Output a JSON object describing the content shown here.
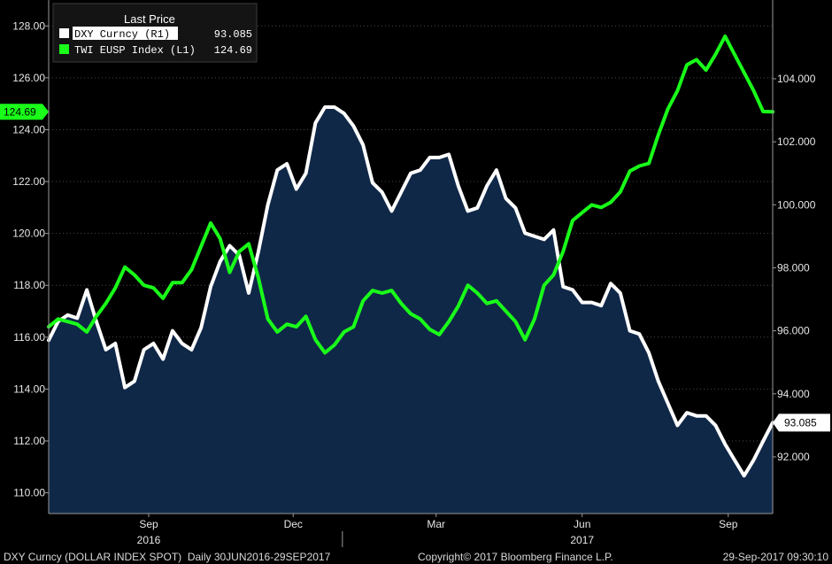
{
  "chart_data": {
    "type": "line",
    "legend": {
      "header": "Last Price",
      "placement": "top-left",
      "entries": [
        {
          "label": "DXY Curncy  (R1)",
          "value": "93.085",
          "color": "#ffffff"
        },
        {
          "label": "TWI EUSP Index  (L1)",
          "value": "124.69",
          "color": "#19ff19"
        }
      ]
    },
    "left_axis": {
      "range": [
        109.2,
        129.0
      ],
      "ticks": [
        "110.00",
        "112.00",
        "114.00",
        "116.00",
        "118.00",
        "120.00",
        "122.00",
        "124.00",
        "126.00",
        "128.00"
      ],
      "last_label": "124.69"
    },
    "right_axis": {
      "range": [
        90.2,
        106.5
      ],
      "ticks": [
        "92.000",
        "94.000",
        "96.000",
        "98.000",
        "100.000",
        "102.000",
        "104.000"
      ],
      "last_label": "93.085"
    },
    "x_axis": {
      "range": [
        "2016-06-30",
        "2017-09-29"
      ],
      "month_ticks": [
        {
          "date": "2016-09-01",
          "label": "Sep"
        },
        {
          "date": "2016-12-01",
          "label": "Dec"
        },
        {
          "date": "2017-03-01",
          "label": "Mar"
        },
        {
          "date": "2017-06-01",
          "label": "Jun"
        },
        {
          "date": "2017-09-01",
          "label": "Sep"
        }
      ],
      "year_labels": [
        {
          "date": "2016-09-01",
          "label": "2016"
        },
        {
          "date": "2017-06-01",
          "label": "2017"
        }
      ],
      "year_divider": "2017-01-01"
    },
    "series": [
      {
        "name": "DXY Curncy",
        "axis": "right",
        "style": "area",
        "color": "#ffffff",
        "fill_color": "#102848",
        "points": [
          [
            "2016-06-30",
            95.7
          ],
          [
            "2016-07-06",
            96.3
          ],
          [
            "2016-07-12",
            96.5
          ],
          [
            "2016-07-18",
            96.4
          ],
          [
            "2016-07-24",
            97.3
          ],
          [
            "2016-07-30",
            96.3
          ],
          [
            "2016-08-05",
            95.4
          ],
          [
            "2016-08-11",
            95.6
          ],
          [
            "2016-08-17",
            94.2
          ],
          [
            "2016-08-23",
            94.4
          ],
          [
            "2016-08-29",
            95.4
          ],
          [
            "2016-09-04",
            95.6
          ],
          [
            "2016-09-10",
            95.1
          ],
          [
            "2016-09-16",
            96.0
          ],
          [
            "2016-09-22",
            95.6
          ],
          [
            "2016-09-28",
            95.4
          ],
          [
            "2016-10-04",
            96.1
          ],
          [
            "2016-10-10",
            97.4
          ],
          [
            "2016-10-16",
            98.2
          ],
          [
            "2016-10-22",
            98.7
          ],
          [
            "2016-10-28",
            98.4
          ],
          [
            "2016-11-03",
            97.2
          ],
          [
            "2016-11-09",
            98.5
          ],
          [
            "2016-11-15",
            100.0
          ],
          [
            "2016-11-21",
            101.1
          ],
          [
            "2016-11-27",
            101.3
          ],
          [
            "2016-12-03",
            100.5
          ],
          [
            "2016-12-09",
            101.0
          ],
          [
            "2016-12-15",
            102.6
          ],
          [
            "2016-12-21",
            103.1
          ],
          [
            "2016-12-27",
            103.1
          ],
          [
            "2017-01-02",
            102.9
          ],
          [
            "2017-01-08",
            102.5
          ],
          [
            "2017-01-14",
            101.9
          ],
          [
            "2017-01-20",
            100.7
          ],
          [
            "2017-01-26",
            100.4
          ],
          [
            "2017-02-01",
            99.8
          ],
          [
            "2017-02-07",
            100.4
          ],
          [
            "2017-02-13",
            101.0
          ],
          [
            "2017-02-19",
            101.1
          ],
          [
            "2017-02-25",
            101.5
          ],
          [
            "2017-03-03",
            101.5
          ],
          [
            "2017-03-09",
            101.6
          ],
          [
            "2017-03-15",
            100.6
          ],
          [
            "2017-03-21",
            99.8
          ],
          [
            "2017-03-27",
            99.9
          ],
          [
            "2017-04-02",
            100.6
          ],
          [
            "2017-04-08",
            101.1
          ],
          [
            "2017-04-14",
            100.2
          ],
          [
            "2017-04-20",
            99.9
          ],
          [
            "2017-04-26",
            99.1
          ],
          [
            "2017-05-02",
            99.0
          ],
          [
            "2017-05-08",
            98.9
          ],
          [
            "2017-05-14",
            99.2
          ],
          [
            "2017-05-20",
            97.4
          ],
          [
            "2017-05-26",
            97.3
          ],
          [
            "2017-06-01",
            96.9
          ],
          [
            "2017-06-07",
            96.9
          ],
          [
            "2017-06-13",
            96.8
          ],
          [
            "2017-06-19",
            97.5
          ],
          [
            "2017-06-25",
            97.2
          ],
          [
            "2017-07-01",
            96.0
          ],
          [
            "2017-07-07",
            95.9
          ],
          [
            "2017-07-13",
            95.3
          ],
          [
            "2017-07-19",
            94.4
          ],
          [
            "2017-07-25",
            93.7
          ],
          [
            "2017-07-31",
            93.0
          ],
          [
            "2017-08-06",
            93.4
          ],
          [
            "2017-08-12",
            93.3
          ],
          [
            "2017-08-18",
            93.3
          ],
          [
            "2017-08-24",
            93.0
          ],
          [
            "2017-08-30",
            92.4
          ],
          [
            "2017-09-05",
            91.9
          ],
          [
            "2017-09-11",
            91.4
          ],
          [
            "2017-09-17",
            91.9
          ],
          [
            "2017-09-23",
            92.5
          ],
          [
            "2017-09-29",
            93.085
          ]
        ]
      },
      {
        "name": "TWI EUSP Index",
        "axis": "left",
        "style": "line",
        "color": "#19ff19",
        "points": [
          [
            "2016-06-30",
            116.4
          ],
          [
            "2016-07-06",
            116.7
          ],
          [
            "2016-07-12",
            116.6
          ],
          [
            "2016-07-18",
            116.5
          ],
          [
            "2016-07-24",
            116.2
          ],
          [
            "2016-07-30",
            116.8
          ],
          [
            "2016-08-05",
            117.3
          ],
          [
            "2016-08-11",
            117.9
          ],
          [
            "2016-08-17",
            118.7
          ],
          [
            "2016-08-23",
            118.4
          ],
          [
            "2016-08-29",
            118.0
          ],
          [
            "2016-09-04",
            117.9
          ],
          [
            "2016-09-10",
            117.5
          ],
          [
            "2016-09-16",
            118.1
          ],
          [
            "2016-09-22",
            118.1
          ],
          [
            "2016-09-28",
            118.6
          ],
          [
            "2016-10-04",
            119.5
          ],
          [
            "2016-10-10",
            120.4
          ],
          [
            "2016-10-16",
            119.8
          ],
          [
            "2016-10-22",
            118.5
          ],
          [
            "2016-10-28",
            119.3
          ],
          [
            "2016-11-03",
            119.6
          ],
          [
            "2016-11-09",
            118.3
          ],
          [
            "2016-11-15",
            116.7
          ],
          [
            "2016-11-21",
            116.2
          ],
          [
            "2016-11-27",
            116.5
          ],
          [
            "2016-12-03",
            116.4
          ],
          [
            "2016-12-09",
            116.8
          ],
          [
            "2016-12-15",
            115.9
          ],
          [
            "2016-12-21",
            115.4
          ],
          [
            "2016-12-27",
            115.7
          ],
          [
            "2017-01-02",
            116.2
          ],
          [
            "2017-01-08",
            116.4
          ],
          [
            "2017-01-14",
            117.4
          ],
          [
            "2017-01-20",
            117.8
          ],
          [
            "2017-01-26",
            117.7
          ],
          [
            "2017-02-01",
            117.8
          ],
          [
            "2017-02-07",
            117.3
          ],
          [
            "2017-02-13",
            116.9
          ],
          [
            "2017-02-19",
            116.7
          ],
          [
            "2017-02-25",
            116.3
          ],
          [
            "2017-03-03",
            116.1
          ],
          [
            "2017-03-09",
            116.6
          ],
          [
            "2017-03-15",
            117.2
          ],
          [
            "2017-03-21",
            118.0
          ],
          [
            "2017-03-27",
            117.7
          ],
          [
            "2017-04-02",
            117.3
          ],
          [
            "2017-04-08",
            117.4
          ],
          [
            "2017-04-14",
            117.0
          ],
          [
            "2017-04-20",
            116.6
          ],
          [
            "2017-04-26",
            115.9
          ],
          [
            "2017-05-02",
            116.7
          ],
          [
            "2017-05-08",
            118.0
          ],
          [
            "2017-05-14",
            118.4
          ],
          [
            "2017-05-20",
            119.3
          ],
          [
            "2017-05-26",
            120.5
          ],
          [
            "2017-06-01",
            120.8
          ],
          [
            "2017-06-07",
            121.1
          ],
          [
            "2017-06-13",
            121.0
          ],
          [
            "2017-06-19",
            121.2
          ],
          [
            "2017-06-25",
            121.6
          ],
          [
            "2017-07-01",
            122.4
          ],
          [
            "2017-07-07",
            122.6
          ],
          [
            "2017-07-13",
            122.7
          ],
          [
            "2017-07-19",
            123.8
          ],
          [
            "2017-07-25",
            124.8
          ],
          [
            "2017-07-31",
            125.5
          ],
          [
            "2017-08-06",
            126.5
          ],
          [
            "2017-08-12",
            126.7
          ],
          [
            "2017-08-18",
            126.3
          ],
          [
            "2017-08-24",
            126.9
          ],
          [
            "2017-08-30",
            127.6
          ],
          [
            "2017-09-05",
            126.9
          ],
          [
            "2017-09-11",
            126.2
          ],
          [
            "2017-09-17",
            125.5
          ],
          [
            "2017-09-23",
            124.7
          ],
          [
            "2017-09-29",
            124.69
          ]
        ]
      }
    ],
    "grid": "horizontal dotted",
    "footer": {
      "left": "DXY Curncy (DOLLAR INDEX SPOT)  Daily 30JUN2016-29SEP2017",
      "center": "Copyright© 2017 Bloomberg Finance L.P.",
      "right": "29-Sep-2017 09:30:10"
    }
  }
}
